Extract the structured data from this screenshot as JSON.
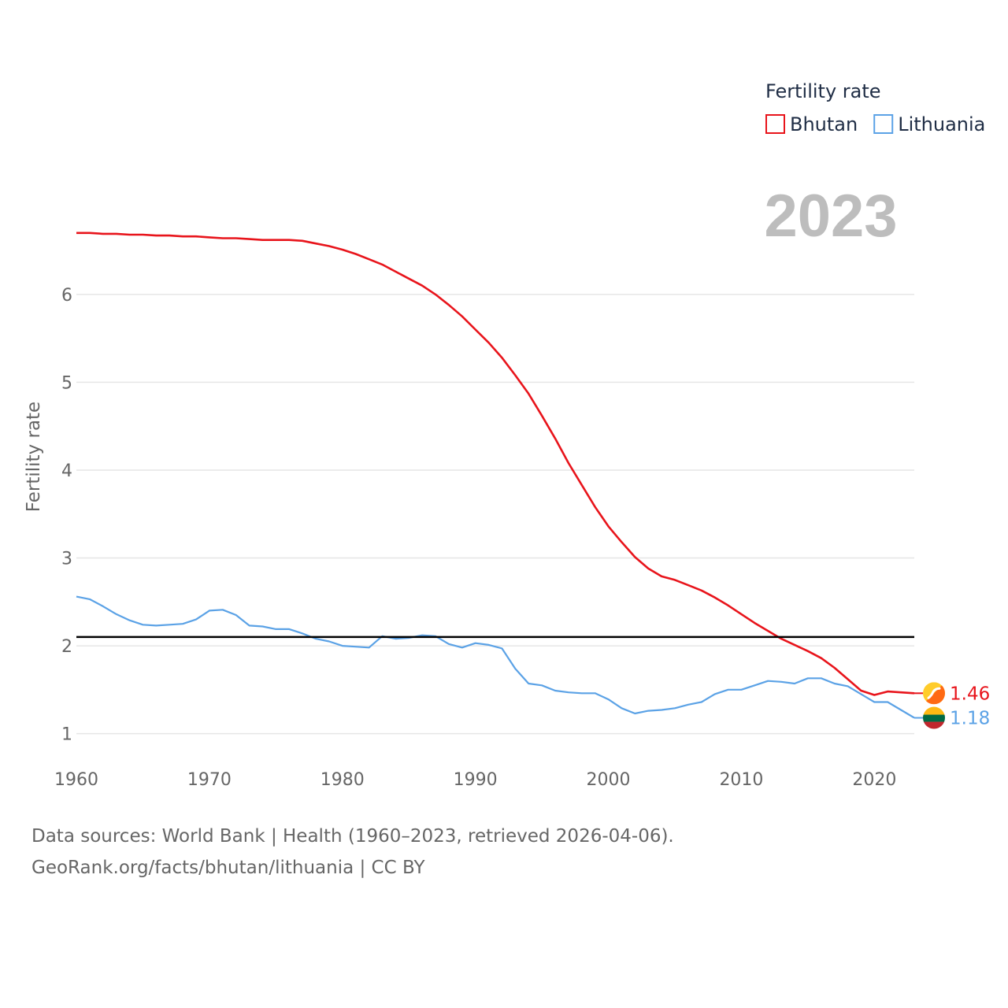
{
  "chart_data": {
    "type": "line",
    "title": "Fertility rate",
    "year_label": "2023",
    "ylabel": "Fertility rate",
    "xlabel": "",
    "xlim": [
      1960,
      2023
    ],
    "ylim": [
      0.88,
      7.2
    ],
    "x_ticks": [
      1960,
      1970,
      1980,
      1990,
      2000,
      2010,
      2020
    ],
    "y_ticks": [
      1,
      2,
      3,
      4,
      5,
      6
    ],
    "reference_line": 2.1,
    "legend": {
      "title": "Fertility rate",
      "placement": "top-right"
    },
    "x": [
      1960,
      1961,
      1962,
      1963,
      1964,
      1965,
      1966,
      1967,
      1968,
      1969,
      1970,
      1971,
      1972,
      1973,
      1974,
      1975,
      1976,
      1977,
      1978,
      1979,
      1980,
      1981,
      1982,
      1983,
      1984,
      1985,
      1986,
      1987,
      1988,
      1989,
      1990,
      1991,
      1992,
      1993,
      1994,
      1995,
      1996,
      1997,
      1998,
      1999,
      2000,
      2001,
      2002,
      2003,
      2004,
      2005,
      2006,
      2007,
      2008,
      2009,
      2010,
      2011,
      2012,
      2013,
      2014,
      2015,
      2016,
      2017,
      2018,
      2019,
      2020,
      2021,
      2022,
      2023
    ],
    "series": [
      {
        "name": "Bhutan",
        "color": "#e8141b",
        "end_label": "1.46",
        "values": [
          6.7,
          6.7,
          6.69,
          6.69,
          6.68,
          6.68,
          6.67,
          6.67,
          6.66,
          6.66,
          6.65,
          6.64,
          6.64,
          6.63,
          6.62,
          6.62,
          6.62,
          6.61,
          6.58,
          6.55,
          6.51,
          6.46,
          6.4,
          6.34,
          6.26,
          6.18,
          6.1,
          6.0,
          5.88,
          5.75,
          5.6,
          5.45,
          5.28,
          5.08,
          4.87,
          4.62,
          4.36,
          4.08,
          3.83,
          3.58,
          3.36,
          3.18,
          3.01,
          2.88,
          2.79,
          2.75,
          2.69,
          2.63,
          2.55,
          2.46,
          2.36,
          2.26,
          2.17,
          2.08,
          2.01,
          1.94,
          1.86,
          1.75,
          1.62,
          1.49,
          1.44,
          1.48,
          1.47,
          1.46
        ]
      },
      {
        "name": "Lithuania",
        "color": "#5ba2e6",
        "end_label": "1.18",
        "values": [
          2.56,
          2.53,
          2.45,
          2.36,
          2.29,
          2.24,
          2.23,
          2.24,
          2.25,
          2.3,
          2.4,
          2.41,
          2.35,
          2.23,
          2.22,
          2.19,
          2.19,
          2.14,
          2.08,
          2.05,
          2.0,
          1.99,
          1.98,
          2.11,
          2.08,
          2.09,
          2.12,
          2.11,
          2.02,
          1.98,
          2.03,
          2.01,
          1.97,
          1.74,
          1.57,
          1.55,
          1.49,
          1.47,
          1.46,
          1.46,
          1.39,
          1.29,
          1.23,
          1.26,
          1.27,
          1.29,
          1.33,
          1.36,
          1.45,
          1.5,
          1.5,
          1.55,
          1.6,
          1.59,
          1.57,
          1.63,
          1.63,
          1.57,
          1.54,
          1.45,
          1.36,
          1.36,
          1.27,
          1.18
        ]
      }
    ]
  },
  "footer": {
    "source_line": "Data sources: World Bank | Health (1960–2023, retrieved 2026-04-06).",
    "link_line": "GeoRank.org/facts/bhutan/lithuania | CC BY"
  }
}
